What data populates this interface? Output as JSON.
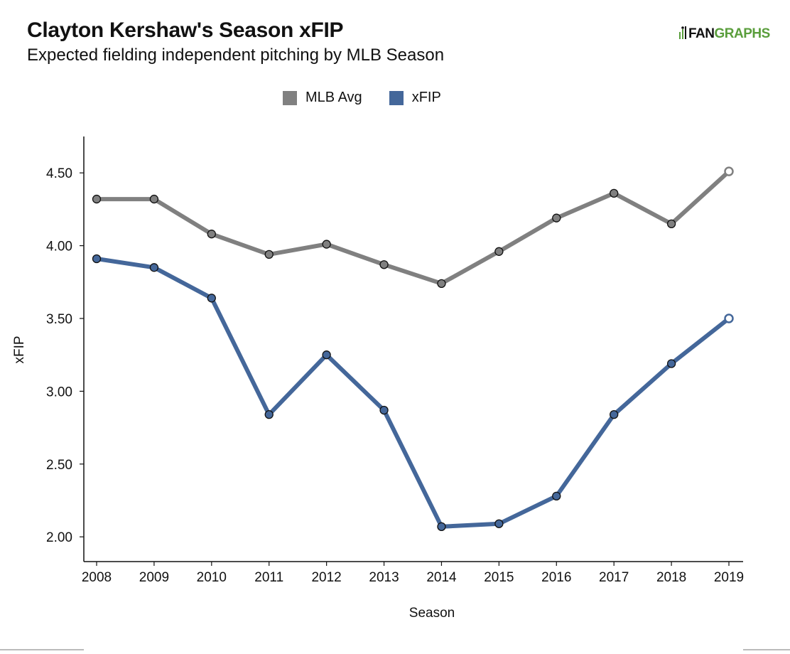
{
  "header": {
    "title": "Clayton Kershaw's Season xFIP",
    "subtitle": "Expected fielding independent pitching by MLB Season",
    "logo_left": "FAN",
    "logo_right": "GRAPHS"
  },
  "colors": {
    "mlb_avg": "#808080",
    "xfip": "#44679a",
    "logo_green": "#5a9e3c"
  },
  "chart_data": {
    "type": "line",
    "title": "Clayton Kershaw's Season xFIP",
    "subtitle": "Expected fielding independent pitching by MLB Season",
    "xlabel": "Season",
    "ylabel": "xFIP",
    "x": [
      2008,
      2009,
      2010,
      2011,
      2012,
      2013,
      2014,
      2015,
      2016,
      2017,
      2018,
      2019
    ],
    "ylim": [
      1.83,
      4.75
    ],
    "yticks": [
      "2.00",
      "2.50",
      "3.00",
      "3.50",
      "4.00",
      "4.50"
    ],
    "grid": false,
    "legend": "top-center",
    "series": [
      {
        "name": "MLB Avg",
        "color": "#808080",
        "values": [
          4.32,
          4.32,
          4.08,
          3.94,
          4.01,
          3.87,
          3.74,
          3.96,
          4.19,
          4.36,
          4.15,
          4.51
        ]
      },
      {
        "name": "xFIP",
        "color": "#44679a",
        "values": [
          3.91,
          3.85,
          3.64,
          2.84,
          3.25,
          2.87,
          2.07,
          2.09,
          2.28,
          2.84,
          3.19,
          3.5
        ]
      }
    ]
  }
}
